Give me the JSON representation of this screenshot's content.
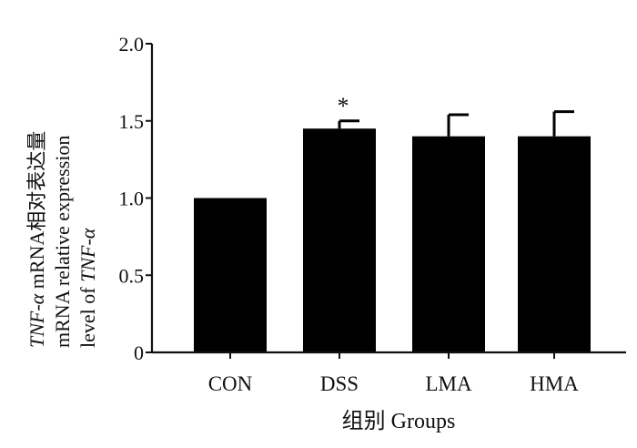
{
  "chart_data": {
    "type": "bar",
    "categories": [
      "CON",
      "DSS",
      "LMA",
      "HMA"
    ],
    "values": [
      1.0,
      1.45,
      1.4,
      1.4
    ],
    "error_bars": [
      0.0,
      0.05,
      0.14,
      0.16
    ],
    "annotations": [
      {
        "category": "DSS",
        "text": "*"
      }
    ],
    "ylim": [
      0,
      2.0
    ],
    "yticks": [
      0,
      0.5,
      1.0,
      1.5,
      2.0
    ],
    "ytick_labels": [
      "0",
      "0.5",
      "1.0",
      "1.5",
      "2.0"
    ],
    "xlabel": "组别 Groups",
    "ylabel": {
      "line1_italic": "TNF-α",
      "line1_rest": " mRNA相对表达量",
      "line2": "mRNA relative expression",
      "line3_prefix": "level of ",
      "line3_italic": "TNF-α"
    },
    "grid": false,
    "legend": "none",
    "colors": {
      "bars": "#000000",
      "axes": "#111111",
      "background": "#ffffff"
    }
  }
}
